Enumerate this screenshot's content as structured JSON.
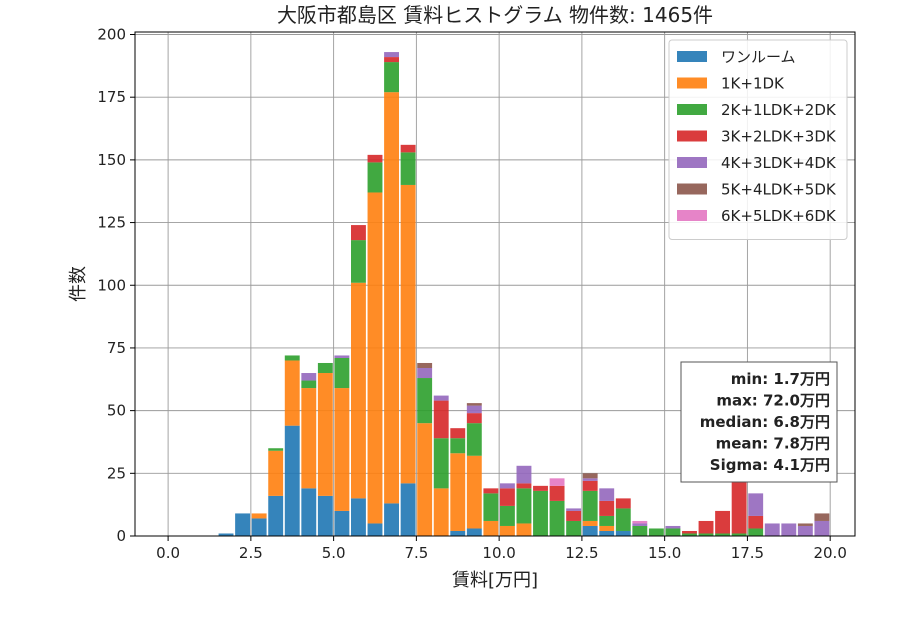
{
  "chart_data": {
    "type": "bar",
    "stacked": true,
    "title": "大阪市都島区 賃料ヒストグラム 物件数: 1465件",
    "xlabel": "賃料[万円]",
    "ylabel": "件数",
    "xlim": [
      -1.0,
      20.75
    ],
    "ylim": [
      0,
      201
    ],
    "x_ticks": [
      "0.0",
      "2.5",
      "5.0",
      "7.5",
      "10.0",
      "12.5",
      "15.0",
      "17.5",
      "20.0"
    ],
    "y_ticks": [
      "0",
      "25",
      "50",
      "75",
      "100",
      "125",
      "150",
      "175",
      "200"
    ],
    "grid": true,
    "legend_position": "top-right",
    "bin_width": 0.5,
    "x": [
      1.75,
      2.25,
      2.75,
      3.25,
      3.75,
      4.25,
      4.75,
      5.25,
      5.75,
      6.25,
      6.75,
      7.25,
      7.75,
      8.25,
      8.75,
      9.25,
      9.75,
      10.25,
      10.75,
      11.25,
      11.75,
      12.25,
      12.75,
      13.25,
      13.75,
      14.25,
      14.75,
      15.25,
      15.75,
      16.25,
      16.75,
      17.25,
      17.75,
      18.25,
      18.75,
      19.25,
      19.75
    ],
    "series": [
      {
        "name": "ワンルーム",
        "color": "#1f77b4",
        "values": [
          1,
          9,
          7,
          16,
          44,
          19,
          16,
          10,
          15,
          5,
          13,
          21,
          0,
          0,
          2,
          3,
          0,
          0,
          0,
          0,
          0,
          0,
          4,
          2,
          2,
          0,
          0,
          0,
          0,
          0,
          0,
          0,
          0,
          0,
          0,
          0,
          0
        ]
      },
      {
        "name": "1K+1DK",
        "color": "#ff7f0e",
        "values": [
          0,
          0,
          2,
          18,
          26,
          40,
          49,
          49,
          86,
          132,
          164,
          119,
          45,
          19,
          31,
          29,
          6,
          4,
          5,
          0,
          0,
          0,
          2,
          2,
          0,
          0,
          0,
          0,
          0,
          0,
          0,
          0,
          0,
          0,
          0,
          0,
          0
        ]
      },
      {
        "name": "2K+1LDK+2DK",
        "color": "#2ca02c",
        "values": [
          0,
          0,
          0,
          1,
          2,
          3,
          4,
          12,
          17,
          12,
          12,
          13,
          18,
          20,
          6,
          13,
          11,
          8,
          14,
          18,
          14,
          6,
          12,
          4,
          9,
          4,
          3,
          3,
          1,
          1,
          1,
          1,
          3,
          0,
          0,
          0,
          0
        ]
      },
      {
        "name": "3K+2LDK+3DK",
        "color": "#d62728",
        "values": [
          0,
          0,
          0,
          0,
          0,
          0,
          0,
          0,
          6,
          3,
          2,
          3,
          0,
          15,
          4,
          4,
          2,
          7,
          2,
          2,
          6,
          4,
          4,
          6,
          4,
          0,
          0,
          0,
          1,
          5,
          9,
          23,
          5,
          0,
          0,
          0,
          0
        ]
      },
      {
        "name": "4K+3LDK+4DK",
        "color": "#9467bd",
        "values": [
          0,
          0,
          0,
          0,
          0,
          3,
          0,
          1,
          0,
          0,
          2,
          0,
          4,
          2,
          0,
          3,
          0,
          2,
          7,
          0,
          0,
          1,
          1,
          5,
          0,
          1,
          0,
          1,
          0,
          0,
          0,
          1,
          9,
          5,
          5,
          4,
          6
        ]
      },
      {
        "name": "5K+4LDK+5DK",
        "color": "#8c564b",
        "values": [
          0,
          0,
          0,
          0,
          0,
          0,
          0,
          0,
          0,
          0,
          0,
          0,
          2,
          0,
          0,
          1,
          0,
          0,
          0,
          0,
          0,
          0,
          2,
          0,
          0,
          0,
          0,
          0,
          0,
          0,
          0,
          0,
          0,
          0,
          0,
          1,
          3
        ]
      },
      {
        "name": "6K+5LDK+6DK",
        "color": "#e377c2",
        "values": [
          0,
          0,
          0,
          0,
          0,
          0,
          0,
          0,
          0,
          0,
          0,
          0,
          0,
          0,
          0,
          0,
          0,
          0,
          0,
          0,
          3,
          0,
          0,
          0,
          0,
          1,
          0,
          0,
          0,
          0,
          0,
          0,
          0,
          0,
          0,
          0,
          0
        ]
      }
    ],
    "stats": [
      "min: 1.7万円",
      "max: 72.0万円",
      "median: 6.8万円",
      "mean: 7.8万円",
      "Sigma: 4.1万円"
    ]
  }
}
